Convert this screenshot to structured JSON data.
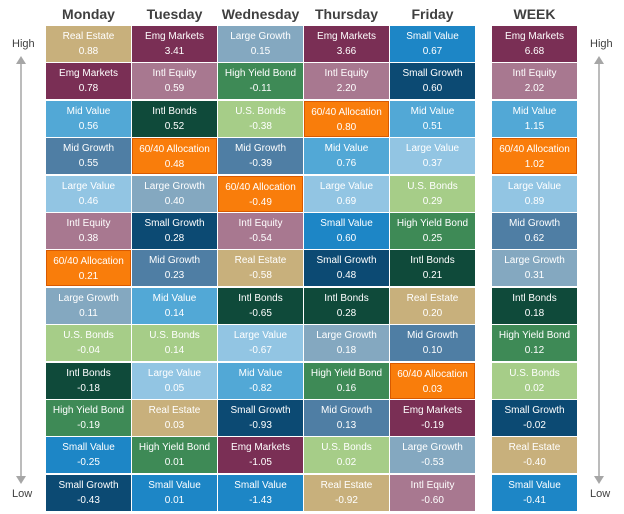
{
  "axis": {
    "high_label": "High",
    "low_label": "Low"
  },
  "colors": {
    "Real Estate": "#c8b07c",
    "Emg Markets": "#7a2f55",
    "Mid Value": "#52a8d6",
    "Mid Growth": "#4f7ea4",
    "Large Value": "#92c5e3",
    "Intl Equity": "#a87890",
    "60/40 Allocation": "#f97d0b",
    "Large Growth": "#84a8c0",
    "U.S. Bonds": "#a6cd88",
    "Intl Bonds": "#0f4a3a",
    "High Yield Bond": "#3e8a56",
    "Small Value": "#1d86c6",
    "Small Growth": "#0c4a73"
  },
  "chart_data": {
    "type": "table",
    "columns": [
      {
        "day": "Monday",
        "cells": [
          {
            "name": "Real Estate",
            "value": "0.88"
          },
          {
            "name": "Emg Markets",
            "value": "0.78"
          },
          {
            "name": "Mid Value",
            "value": "0.56"
          },
          {
            "name": "Mid Growth",
            "value": "0.55"
          },
          {
            "name": "Large Value",
            "value": "0.46"
          },
          {
            "name": "Intl Equity",
            "value": "0.38"
          },
          {
            "name": "60/40 Allocation",
            "value": "0.21"
          },
          {
            "name": "Large Growth",
            "value": "0.11"
          },
          {
            "name": "U.S. Bonds",
            "value": "-0.04"
          },
          {
            "name": "Intl Bonds",
            "value": "-0.18"
          },
          {
            "name": "High Yield Bond",
            "value": "-0.19"
          },
          {
            "name": "Small Value",
            "value": "-0.25"
          },
          {
            "name": "Small Growth",
            "value": "-0.43"
          }
        ]
      },
      {
        "day": "Tuesday",
        "cells": [
          {
            "name": "Emg Markets",
            "value": "3.41"
          },
          {
            "name": "Intl Equity",
            "value": "0.59"
          },
          {
            "name": "Intl Bonds",
            "value": "0.52"
          },
          {
            "name": "60/40 Allocation",
            "value": "0.48"
          },
          {
            "name": "Large Growth",
            "value": "0.40"
          },
          {
            "name": "Small Growth",
            "value": "0.28"
          },
          {
            "name": "Mid Growth",
            "value": "0.23"
          },
          {
            "name": "Mid Value",
            "value": "0.14"
          },
          {
            "name": "U.S. Bonds",
            "value": "0.14"
          },
          {
            "name": "Large Value",
            "value": "0.05"
          },
          {
            "name": "Real Estate",
            "value": "0.03"
          },
          {
            "name": "High Yield Bond",
            "value": "0.01"
          },
          {
            "name": "Small Value",
            "value": "0.01"
          }
        ]
      },
      {
        "day": "Wednesday",
        "cells": [
          {
            "name": "Large Growth",
            "value": "0.15"
          },
          {
            "name": "High Yield Bond",
            "value": "-0.11"
          },
          {
            "name": "U.S. Bonds",
            "value": "-0.38"
          },
          {
            "name": "Mid Growth",
            "value": "-0.39"
          },
          {
            "name": "60/40 Allocation",
            "value": "-0.49"
          },
          {
            "name": "Intl Equity",
            "value": "-0.54"
          },
          {
            "name": "Real Estate",
            "value": "-0.58"
          },
          {
            "name": "Intl Bonds",
            "value": "-0.65"
          },
          {
            "name": "Large Value",
            "value": "-0.67"
          },
          {
            "name": "Mid Value",
            "value": "-0.82"
          },
          {
            "name": "Small Growth",
            "value": "-0.93"
          },
          {
            "name": "Emg Markets",
            "value": "-1.05"
          },
          {
            "name": "Small Value",
            "value": "-1.43"
          }
        ]
      },
      {
        "day": "Thursday",
        "cells": [
          {
            "name": "Emg Markets",
            "value": "3.66"
          },
          {
            "name": "Intl Equity",
            "value": "2.20"
          },
          {
            "name": "60/40 Allocation",
            "value": "0.80"
          },
          {
            "name": "Mid Value",
            "value": "0.76"
          },
          {
            "name": "Large Value",
            "value": "0.69"
          },
          {
            "name": "Small Value",
            "value": "0.60"
          },
          {
            "name": "Small Growth",
            "value": "0.48"
          },
          {
            "name": "Intl Bonds",
            "value": "0.28"
          },
          {
            "name": "Large Growth",
            "value": "0.18"
          },
          {
            "name": "High Yield Bond",
            "value": "0.16"
          },
          {
            "name": "Mid Growth",
            "value": "0.13"
          },
          {
            "name": "U.S. Bonds",
            "value": "0.02"
          },
          {
            "name": "Real Estate",
            "value": "-0.92"
          }
        ]
      },
      {
        "day": "Friday",
        "cells": [
          {
            "name": "Small Value",
            "value": "0.67"
          },
          {
            "name": "Small Growth",
            "value": "0.60"
          },
          {
            "name": "Mid Value",
            "value": "0.51"
          },
          {
            "name": "Large Value",
            "value": "0.37"
          },
          {
            "name": "U.S. Bonds",
            "value": "0.29"
          },
          {
            "name": "High Yield Bond",
            "value": "0.25"
          },
          {
            "name": "Intl Bonds",
            "value": "0.21"
          },
          {
            "name": "Real Estate",
            "value": "0.20"
          },
          {
            "name": "Mid Growth",
            "value": "0.10"
          },
          {
            "name": "60/40 Allocation",
            "value": "0.03"
          },
          {
            "name": "Emg Markets",
            "value": "-0.19"
          },
          {
            "name": "Large Growth",
            "value": "-0.53"
          },
          {
            "name": "Intl Equity",
            "value": "-0.60"
          }
        ]
      },
      {
        "day": "WEEK",
        "cells": [
          {
            "name": "Emg Markets",
            "value": "6.68"
          },
          {
            "name": "Intl Equity",
            "value": "2.02"
          },
          {
            "name": "Mid Value",
            "value": "1.15"
          },
          {
            "name": "60/40 Allocation",
            "value": "1.02"
          },
          {
            "name": "Large Value",
            "value": "0.89"
          },
          {
            "name": "Mid Growth",
            "value": "0.62"
          },
          {
            "name": "Large Growth",
            "value": "0.31"
          },
          {
            "name": "Intl Bonds",
            "value": "0.18"
          },
          {
            "name": "High Yield Bond",
            "value": "0.12"
          },
          {
            "name": "U.S. Bonds",
            "value": "0.02"
          },
          {
            "name": "Small Growth",
            "value": "-0.02"
          },
          {
            "name": "Real Estate",
            "value": "-0.40"
          },
          {
            "name": "Small Value",
            "value": "-0.41"
          }
        ]
      }
    ]
  }
}
